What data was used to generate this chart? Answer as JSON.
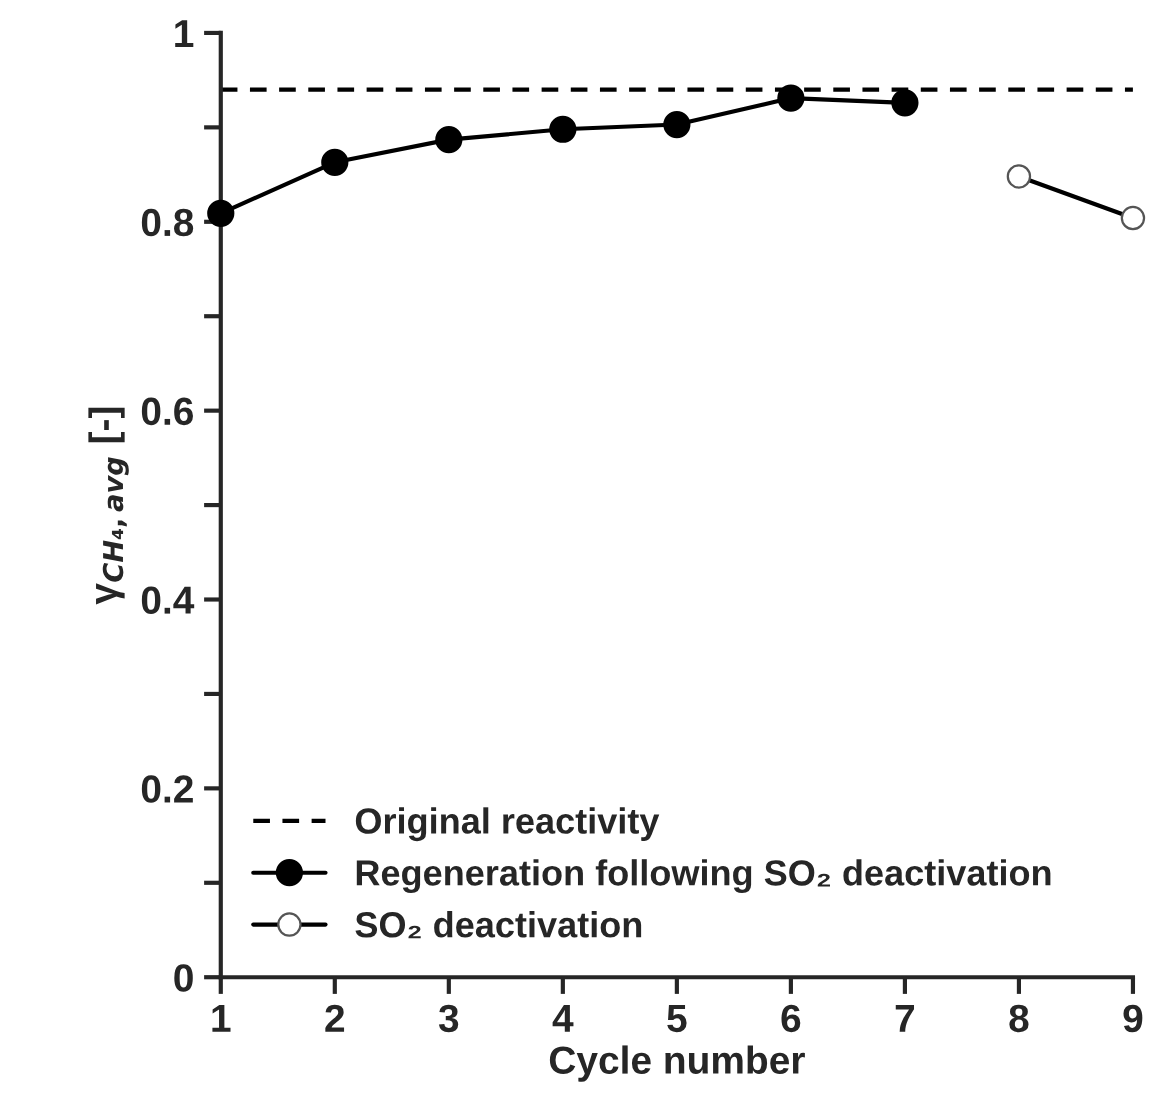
{
  "chart_data": {
    "type": "line",
    "xlabel": "Cycle number",
    "ylabel": "γ$_{CH₄,avg}$ [-]",
    "xlim": [
      1,
      9
    ],
    "xticks": [
      1,
      2,
      3,
      4,
      5,
      6,
      7,
      8,
      9
    ],
    "ylim": [
      0,
      1
    ],
    "yticks": [
      0,
      {
        "value": 0.1,
        "label": null
      },
      0.2,
      {
        "value": 0.3,
        "label": null
      },
      0.4,
      {
        "value": 0.5,
        "label": null
      },
      0.6,
      {
        "value": 0.7,
        "label": null
      },
      0.8,
      {
        "value": 0.9,
        "label": null
      },
      1
    ],
    "ref_lines": [
      {
        "axis": "y",
        "value": 0.94,
        "label": "Original reactivity",
        "color": "#000000",
        "line_style": "dashed"
      }
    ],
    "series": [
      {
        "name": "Regeneration following SO₂ deactivation",
        "color": "#000000",
        "marker": "circle",
        "x": [
          1,
          2,
          3,
          4,
          5,
          6,
          7
        ],
        "values": [
          0.809,
          0.863,
          0.887,
          0.898,
          0.903,
          0.931,
          0.926
        ]
      },
      {
        "name": "SO₂ deactivation",
        "color": "#000000",
        "marker": "circle",
        "x": [
          8,
          9
        ],
        "values": [
          0.848,
          0.804
        ]
      }
    ],
    "legend": "bottom left",
    "grid": false,
    "line_style": "solid"
  }
}
